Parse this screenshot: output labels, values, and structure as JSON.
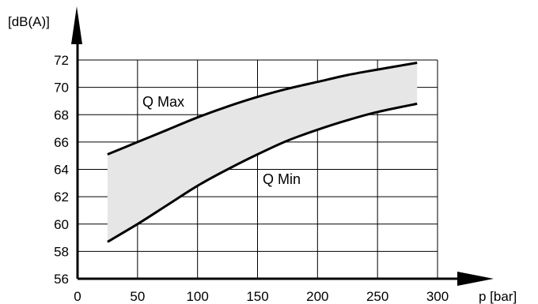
{
  "chart_data": {
    "type": "area",
    "ylabel": "[dB(A)]",
    "xlabel": "p [bar]",
    "xlim": [
      0,
      300
    ],
    "ylim": [
      56,
      72
    ],
    "xticks": [
      0,
      50,
      100,
      150,
      200,
      250,
      300
    ],
    "yticks": [
      56,
      58,
      60,
      62,
      64,
      66,
      68,
      70,
      72
    ],
    "grid": true,
    "band_color": "#e6e6e6",
    "line_color": "#000000",
    "series": [
      {
        "name": "Q Max",
        "x": [
          25,
          50,
          75,
          100,
          125,
          150,
          175,
          200,
          225,
          250,
          283
        ],
        "y": [
          65.1,
          66.0,
          66.9,
          67.8,
          68.6,
          69.3,
          69.9,
          70.4,
          70.9,
          71.3,
          71.8
        ]
      },
      {
        "name": "Q Min",
        "x": [
          25,
          50,
          75,
          100,
          125,
          150,
          175,
          200,
          225,
          250,
          283
        ],
        "y": [
          58.7,
          60.0,
          61.4,
          62.8,
          64.0,
          65.1,
          66.1,
          66.9,
          67.6,
          68.2,
          68.8
        ]
      }
    ]
  }
}
